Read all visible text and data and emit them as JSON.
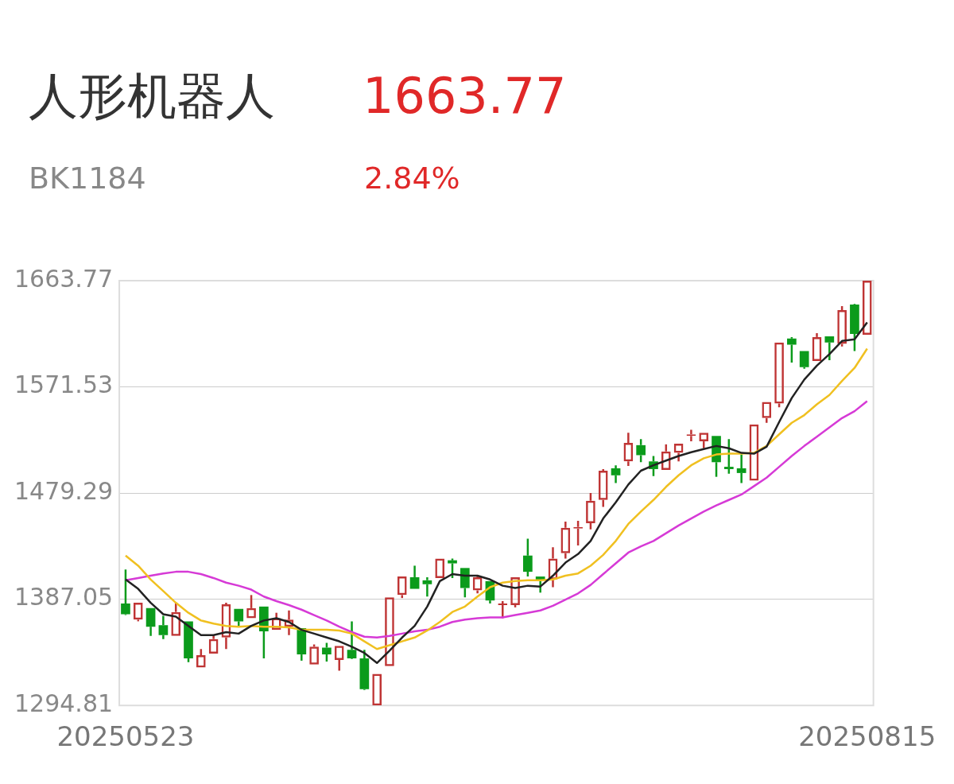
{
  "chart_data": {
    "type": "candlestick",
    "title": "人形机器人",
    "subtitle": "BK1184",
    "annotations": [
      "1663.77",
      "2.84%"
    ],
    "categories": [
      "20250523",
      null,
      null,
      null,
      null,
      null,
      null,
      null,
      null,
      null,
      null,
      null,
      null,
      null,
      null,
      null,
      null,
      null,
      null,
      null,
      null,
      null,
      null,
      null,
      null,
      null,
      null,
      null,
      null,
      null,
      null,
      null,
      null,
      null,
      null,
      null,
      null,
      null,
      null,
      null,
      null,
      null,
      null,
      null,
      null,
      null,
      null,
      null,
      null,
      null,
      null,
      null,
      null,
      null,
      null,
      null,
      null,
      null,
      null,
      "20250815"
    ],
    "ohlc": [
      [
        1383.4,
        1412.9,
        1373.3,
        1374.0
      ],
      [
        1369.3,
        1384.0,
        1367.9,
        1384.0
      ],
      [
        1379.3,
        1379.3,
        1355.2,
        1363.2
      ],
      [
        1364.6,
        1372.6,
        1352.5,
        1355.9
      ],
      [
        1355.2,
        1384.0,
        1355.2,
        1376.0
      ],
      [
        1367.9,
        1367.9,
        1332.4,
        1335.7
      ],
      [
        1327.7,
        1343.8,
        1327.7,
        1338.4
      ],
      [
        1339.8,
        1355.9,
        1339.8,
        1352.5
      ],
      [
        1353.8,
        1384.0,
        1343.8,
        1382.7
      ],
      [
        1378.7,
        1378.7,
        1363.9,
        1367.9
      ],
      [
        1370.6,
        1390.7,
        1370.6,
        1379.3
      ],
      [
        1380.7,
        1380.7,
        1335.7,
        1359.2
      ],
      [
        1360.5,
        1375.3,
        1360.5,
        1370.6
      ],
      [
        1363.2,
        1377.3,
        1355.9,
        1369.3
      ],
      [
        1361.9,
        1361.9,
        1333.7,
        1339.1
      ],
      [
        1330.4,
        1347.8,
        1330.4,
        1345.8
      ],
      [
        1345.1,
        1349.1,
        1333.0,
        1339.1
      ],
      [
        1334.4,
        1346.5,
        1325.0,
        1346.5
      ],
      [
        1343.1,
        1367.9,
        1335.1,
        1335.7
      ],
      [
        1335.7,
        1343.1,
        1308.2,
        1308.9
      ],
      [
        1294.81,
        1322.3,
        1294.81,
        1322.3
      ],
      [
        1329.0,
        1388.7,
        1329.0,
        1388.7
      ],
      [
        1390.7,
        1406.8,
        1388.1,
        1406.8
      ],
      [
        1406.2,
        1416.2,
        1396.1,
        1396.1
      ],
      [
        1403.5,
        1406.2,
        1389.4,
        1400.1
      ],
      [
        1405.5,
        1422.3,
        1405.5,
        1422.3
      ],
      [
        1420.9,
        1422.3,
        1405.5,
        1418.2
      ],
      [
        1414.2,
        1414.2,
        1388.7,
        1396.8
      ],
      [
        1394.8,
        1406.8,
        1392.1,
        1406.2
      ],
      [
        1402.8,
        1402.8,
        1383.4,
        1386.0
      ],
      [
        1382.0,
        1385.4,
        1370.6,
        1383.4
      ],
      [
        1382.0,
        1406.2,
        1380.0,
        1406.2
      ],
      [
        1425.0,
        1439.7,
        1406.8,
        1410.9
      ],
      [
        1406.8,
        1406.8,
        1392.8,
        1403.5
      ],
      [
        1404.2,
        1432.3,
        1397.5,
        1422.3
      ],
      [
        1427.0,
        1454.5,
        1422.3,
        1449.1
      ],
      [
        1448.4,
        1455.1,
        1433.7,
        1449.8
      ],
      [
        1453.1,
        1479.3,
        1447.8,
        1472.6
      ],
      [
        1473.3,
        1500.1,
        1467.2,
        1498.7
      ],
      [
        1500.8,
        1503.4,
        1488.0,
        1494.7
      ],
      [
        1506.8,
        1531.6,
        1502.8,
        1522.9
      ],
      [
        1520.9,
        1526.2,
        1506.1,
        1512.2
      ],
      [
        1506.8,
        1511.5,
        1494.0,
        1500.1
      ],
      [
        1499.4,
        1521.6,
        1499.4,
        1515.5
      ],
      [
        1514.2,
        1522.2,
        1506.8,
        1522.2
      ],
      [
        1528.9,
        1534.3,
        1524.2,
        1530.3
      ],
      [
        1524.2,
        1531.6,
        1518.2,
        1531.6
      ],
      [
        1528.9,
        1528.9,
        1493.4,
        1506.1
      ],
      [
        1502.1,
        1526.2,
        1496.1,
        1500.1
      ],
      [
        1500.8,
        1512.8,
        1488.0,
        1496.7
      ],
      [
        1490.0,
        1539.0,
        1490.0,
        1539.0
      ],
      [
        1544.4,
        1558.5,
        1540.3,
        1558.5
      ],
      [
        1557.1,
        1610.1,
        1553.8,
        1610.1
      ],
      [
        1613.5,
        1614.8,
        1592.7,
        1608.1
      ],
      [
        1602.7,
        1602.7,
        1587.3,
        1588.6
      ],
      [
        1594.0,
        1618.2,
        1594.0,
        1614.8
      ],
      [
        1615.5,
        1615.5,
        1594.7,
        1610.1
      ],
      [
        1608.8,
        1641.6,
        1606.7,
        1638.3
      ],
      [
        1643.0,
        1643.6,
        1602.7,
        1617.5
      ],
      [
        1616.8,
        1663.77,
        1616.8,
        1663.77
      ]
    ],
    "colors": [
      "#0b9b1b",
      "#bf3434",
      "#0b9b1b",
      "#0b9b1b",
      "#bf3434",
      "#0b9b1b",
      "#bf3434",
      "#bf3434",
      "#bf3434",
      "#0b9b1b",
      "#bf3434",
      "#0b9b1b",
      "#bf3434",
      "#bf3434",
      "#0b9b1b",
      "#bf3434",
      "#0b9b1b",
      "#bf3434",
      "#0b9b1b",
      "#0b9b1b",
      "#bf3434",
      "#bf3434",
      "#bf3434",
      "#0b9b1b",
      "#0b9b1b",
      "#bf3434",
      "#0b9b1b",
      "#0b9b1b",
      "#bf3434",
      "#0b9b1b",
      "#bf3434",
      "#bf3434",
      "#0b9b1b",
      "#0b9b1b",
      "#bf3434",
      "#bf3434",
      "#bf3434",
      "#bf3434",
      "#bf3434",
      "#0b9b1b",
      "#bf3434",
      "#0b9b1b",
      "#0b9b1b",
      "#bf3434",
      "#bf3434",
      "#bf3434",
      "#bf3434",
      "#0b9b1b",
      "#0b9b1b",
      "#0b9b1b",
      "#bf3434",
      "#bf3434",
      "#bf3434",
      "#0b9b1b",
      "#0b9b1b",
      "#bf3434",
      "#0b9b1b",
      "#bf3434",
      "#0b9b1b",
      "#bf3434"
    ],
    "series": [
      {
        "type": "line",
        "color": "#222222",
        "values": [
          1404.2,
          1396.1,
          1384.0,
          1374.0,
          1372.0,
          1363.9,
          1355.9,
          1355.9,
          1358.5,
          1357.2,
          1363.9,
          1368.6,
          1370.6,
          1367.3,
          1360.5,
          1357.2,
          1353.8,
          1350.5,
          1345.8,
          1340.4,
          1331.7,
          1342.4,
          1353.8,
          1363.9,
          1380.7,
          1402.8,
          1408.9,
          1407.5,
          1407.5,
          1404.2,
          1398.8,
          1396.8,
          1398.8,
          1398.1,
          1407.5,
          1418.9,
          1426.3,
          1437.7,
          1457.2,
          1471.2,
          1486.7,
          1498.7,
          1503.4,
          1507.5,
          1511.5,
          1514.8,
          1517.5,
          1520.2,
          1518.2,
          1514.2,
          1513.5,
          1519.5,
          1541.0,
          1561.8,
          1577.9,
          1590.0,
          1600.0,
          1611.4,
          1612.8,
          1627.5
        ]
      },
      {
        "type": "line",
        "color": "#f0c020",
        "values": [
          1425.0,
          1416.2,
          1404.2,
          1394.1,
          1384.0,
          1375.3,
          1368.6,
          1365.9,
          1363.9,
          1363.2,
          1363.9,
          1363.2,
          1363.2,
          1362.6,
          1360.5,
          1360.5,
          1360.5,
          1359.9,
          1357.2,
          1350.5,
          1343.8,
          1347.1,
          1350.5,
          1353.8,
          1359.9,
          1367.3,
          1376.0,
          1380.7,
          1389.4,
          1397.5,
          1401.5,
          1402.8,
          1403.5,
          1403.5,
          1404.2,
          1407.5,
          1409.5,
          1416.2,
          1425.6,
          1437.7,
          1452.5,
          1463.2,
          1473.3,
          1484.7,
          1494.7,
          1503.4,
          1509.5,
          1512.8,
          1513.5,
          1513.5,
          1514.2,
          1520.2,
          1530.3,
          1540.3,
          1547.0,
          1556.4,
          1564.5,
          1576.6,
          1588.0,
          1604.7
        ]
      },
      {
        "type": "line",
        "color": "#d63ad6",
        "values": [
          1403.5,
          1405.5,
          1407.5,
          1409.5,
          1410.9,
          1410.9,
          1408.9,
          1405.5,
          1401.5,
          1398.8,
          1395.4,
          1389.4,
          1385.4,
          1382.0,
          1378.0,
          1373.3,
          1368.6,
          1363.2,
          1358.5,
          1354.5,
          1353.8,
          1355.2,
          1357.2,
          1359.2,
          1360.5,
          1363.2,
          1367.3,
          1369.3,
          1370.6,
          1371.3,
          1371.3,
          1373.3,
          1375.3,
          1377.3,
          1381.4,
          1386.7,
          1392.1,
          1399.5,
          1408.9,
          1418.2,
          1427.6,
          1433.0,
          1437.7,
          1444.4,
          1451.1,
          1457.2,
          1463.2,
          1468.6,
          1473.3,
          1478.0,
          1485.3,
          1492.7,
          1502.1,
          1511.5,
          1520.2,
          1528.3,
          1536.3,
          1544.4,
          1550.4,
          1559.1
        ]
      }
    ],
    "ylim": [
      1294.81,
      1663.77
    ],
    "yticks": [
      1294.81,
      1387.05,
      1479.29,
      1571.53,
      1663.77
    ],
    "grid": "y",
    "legend": false,
    "marker": "none"
  }
}
